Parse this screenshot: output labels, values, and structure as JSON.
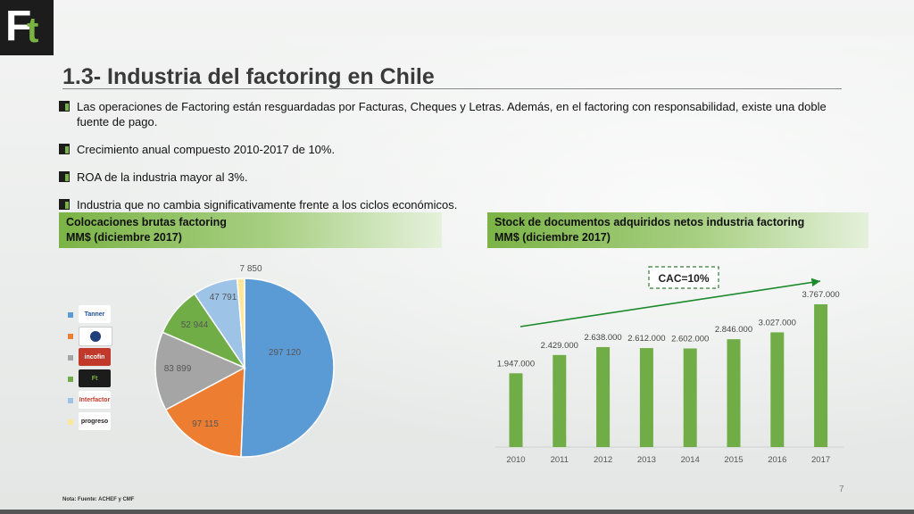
{
  "header": {
    "title": "1.3- Industria del factoring en Chile",
    "page_number": "7"
  },
  "bullets": [
    "Las operaciones de Factoring están resguardadas por Facturas, Cheques y Letras. Además, en el factoring con responsabilidad, existe una doble fuente de pago.",
    "Crecimiento anual compuesto 2010-2017 de 10%.",
    "ROA de la industria mayor al 3%.",
    "Industria que no cambia significativamente frente a los ciclos económicos."
  ],
  "left_panel": {
    "title_line1": "Colocaciones brutas factoring",
    "title_line2": "MM$ (diciembre 2017)"
  },
  "right_panel": {
    "title_line1": "Stock de documentos adquiridos netos industria factoring",
    "title_line2": "MM$ (diciembre 2017)"
  },
  "legend": [
    {
      "text": "Tanner",
      "color": "#5b9bd5",
      "text_color": "#1f4e9a",
      "bg": "#ffffff",
      "icon": "tanner-logo-icon"
    },
    {
      "text": "",
      "color": "#ed7d31",
      "text_color": "#1f3f7a",
      "bg": "#ffffff",
      "icon": "circle-logo-icon"
    },
    {
      "text": "incofin",
      "color": "#a5a5a5",
      "text_color": "#ffffff",
      "bg": "#c0392b",
      "icon": "incofin-logo-icon"
    },
    {
      "text": "Ft",
      "color": "#70ad47",
      "text_color": "#7ab342",
      "bg": "#1c1c1c",
      "icon": "ft-logo-icon"
    },
    {
      "text": "Interfactor",
      "color": "#9dc3e6",
      "text_color": "#c0392b",
      "bg": "#ffffff",
      "icon": "interfactor-logo-icon"
    },
    {
      "text": "progreso",
      "color": "#ffe699",
      "text_color": "#222222",
      "bg": "#ffffff",
      "icon": "progreso-logo-icon"
    }
  ],
  "chart_data": [
    {
      "type": "pie",
      "values": [
        297120,
        97115,
        83899,
        52944,
        47791,
        7850
      ],
      "labels": [
        "297 120",
        "97 115",
        "83 899",
        "52 944",
        "47 791",
        "7 850"
      ],
      "colors": [
        "#5b9bd5",
        "#ed7d31",
        "#a5a5a5",
        "#70ad47",
        "#9dc3e6",
        "#ffe699"
      ]
    },
    {
      "type": "bar",
      "categories": [
        "2010",
        "2011",
        "2012",
        "2013",
        "2014",
        "2015",
        "2016",
        "2017"
      ],
      "values": [
        1947000,
        2429000,
        2638000,
        2612000,
        2602000,
        2846000,
        3027000,
        3767000
      ],
      "data_labels": [
        "1.947.000",
        "2.429.000",
        "2.638.000",
        "2.612.000",
        "2.602.000",
        "2.846.000",
        "3.027.000",
        "3.767.000"
      ],
      "annotation": "CAC=10%",
      "bar_color": "#70ad47",
      "ylim": [
        0,
        3767000
      ]
    }
  ],
  "footer": {
    "note": "Nota: Fuente: ACHEF y CMF"
  }
}
